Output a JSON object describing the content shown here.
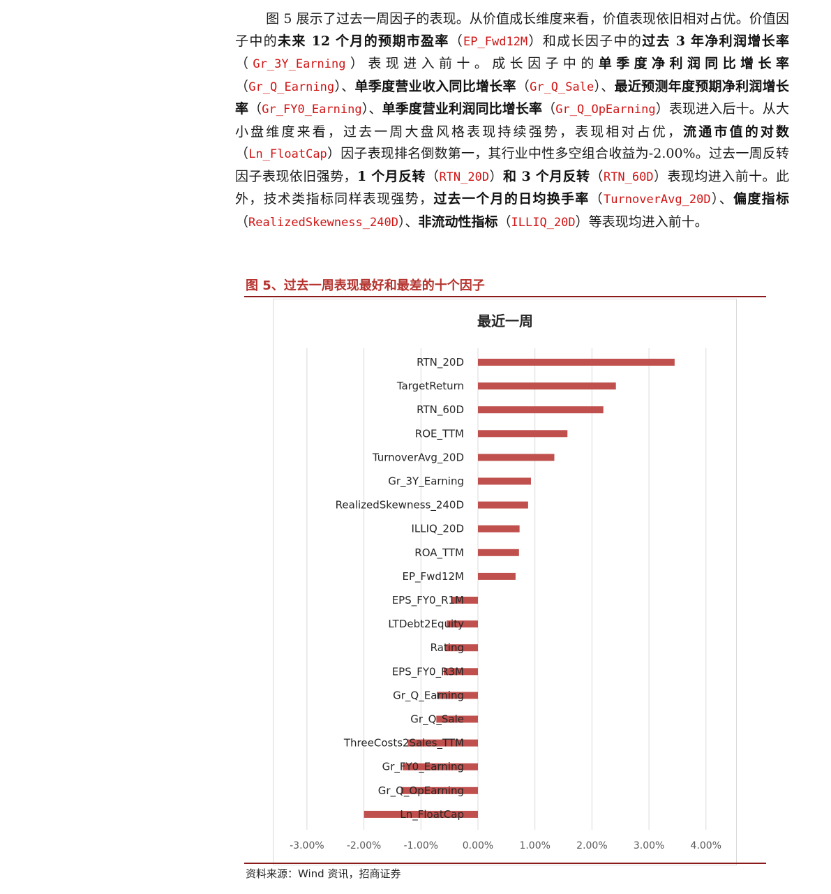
{
  "paragraph": {
    "s1": "图 5 展示了过去一周因子的表现。从价值成长维度来看，价值表现依旧相对占优。价值因子中的",
    "b1": "未来 12 个月的预期市盈率",
    "p1": "（",
    "c1": "EP_Fwd12M",
    "p2": "）和成长因子中的",
    "b2": "过去 3 年净利润增长率",
    "p3": "（",
    "c2": "Gr_3Y_Earning",
    "p4": "）表现进入前十。成长因子中的",
    "b3": "单季度净利润同比增长率",
    "p5": "（",
    "c3": "Gr_Q_Earning",
    "p6": "）、",
    "b4": "单季度营业收入同比增长率",
    "p7": "（",
    "c4": "Gr_Q_Sale",
    "p8": "）、",
    "b5": "最近预测年度预期净利润增长率",
    "p9": "（",
    "c5": "Gr_FY0_Earning",
    "p10": "）、",
    "b6": "单季度营业利润同比增长率",
    "p11": "（",
    "c6": "Gr_Q_OpEarning",
    "p12": "）表现进入后十。从大小盘维度来看，过去一周大盘风格表现持续强势，表现相对占优，",
    "b7": "流通市值的对数",
    "p13": "（",
    "c7": "Ln_FloatCap",
    "p14": "）因子表现排名倒数第一，其行业中性多空组合收益为-2.00%。过去一周反转因子表现依旧强势，",
    "b8": "1 个月反转",
    "p15": "（",
    "c8": "RTN_20D",
    "p16": "）",
    "b9": "和 3 个月反转",
    "p17": "（",
    "c9": "RTN_60D",
    "p18": "）表现均进入前十。此外，技术类指标同样表现强势，",
    "b10": "过去一个月的日均换手率",
    "p19": "（",
    "c10": "TurnoverAvg_20D",
    "p20": "）、",
    "b11": "偏度指标",
    "p21": "（",
    "c11": "RealizedSkewness_240D",
    "p22": "）、",
    "b12": "非流动性指标",
    "p23": "（",
    "c12": "ILLIQ_20D",
    "p24": "）等表现均进入前十。"
  },
  "figure": {
    "title": "图 5、过去一周表现最好和最差的十个因子",
    "source": "资料来源：Wind 资讯，招商证券"
  },
  "colors": {
    "bar": "#c0504d",
    "accent": "#b5332e",
    "rule": "#8b1a1a",
    "code": "#d01414"
  },
  "chart_data": {
    "type": "bar",
    "orientation": "horizontal",
    "title": "最近一周",
    "categories": [
      "RTN_20D",
      "TargetReturn",
      "RTN_60D",
      "ROE_TTM",
      "TurnoverAvg_20D",
      "Gr_3Y_Earning",
      "RealizedSkewness_240D",
      "ILLIQ_20D",
      "ROA_TTM",
      "EP_Fwd12M",
      "EPS_FY0_R1M",
      "LTDebt2Equity",
      "Rating",
      "EPS_FY0_R3M",
      "Gr_Q_Earning",
      "Gr_Q_Sale",
      "ThreeCosts2Sales_TTM",
      "Gr_FY0_Earning",
      "Gr_Q_OpEarning",
      "Ln_FloatCap"
    ],
    "values": [
      3.45,
      2.42,
      2.2,
      1.57,
      1.34,
      0.93,
      0.88,
      0.73,
      0.72,
      0.66,
      -0.47,
      -0.55,
      -0.58,
      -0.6,
      -0.72,
      -0.73,
      -1.23,
      -1.32,
      -1.35,
      -2.0
    ],
    "value_unit": "%",
    "xlim": [
      -3.0,
      4.0
    ],
    "xticks": [
      "-3.00%",
      "-2.00%",
      "-1.00%",
      "0.00%",
      "1.00%",
      "2.00%",
      "3.00%",
      "4.00%"
    ],
    "xtick_values": [
      -3,
      -2,
      -1,
      0,
      1,
      2,
      3,
      4
    ],
    "grid": true,
    "legend": "none"
  }
}
